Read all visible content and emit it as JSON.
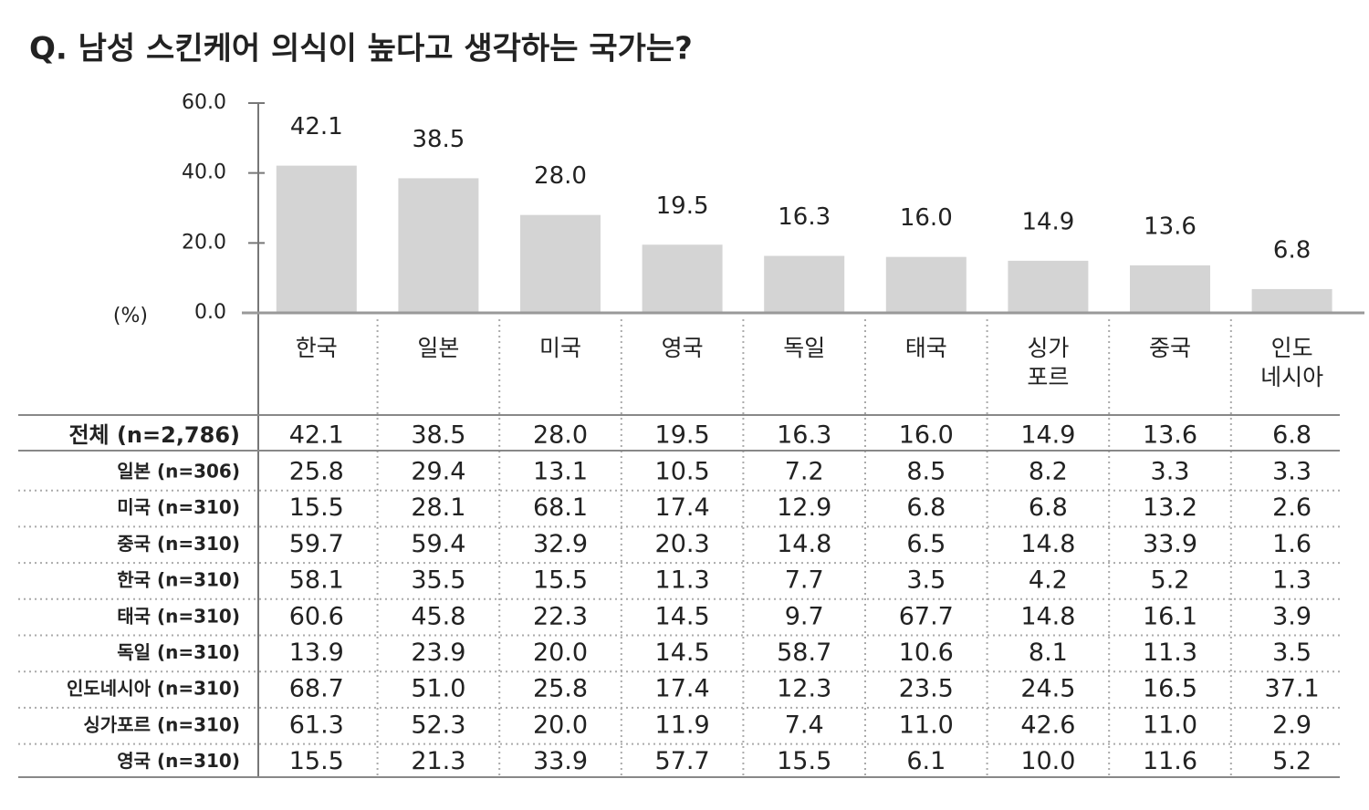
{
  "title": "Q. 남성 스킨케어 의식이  높다고 생각하는 국가는?",
  "chart_data": {
    "type": "bar",
    "y_unit": "(%)",
    "categories": [
      "한국",
      "일본",
      "미국",
      "영국",
      "독일",
      "태국",
      "싱가\n포르",
      "중국",
      "인도\n네시아"
    ],
    "values": [
      42.1,
      38.5,
      28.0,
      19.5,
      16.3,
      16.0,
      14.9,
      13.6,
      6.8
    ],
    "value_labels": [
      "42.1",
      "38.5",
      "28.0",
      "19.5",
      "16.3",
      "16.0",
      "14.9",
      "13.6",
      "6.8"
    ],
    "color": "#d4d4d4",
    "ylim": [
      0,
      60
    ],
    "yticks": [
      {
        "value": 0,
        "label": "0.0"
      },
      {
        "value": 20,
        "label": "20.0"
      },
      {
        "value": 40,
        "label": "40.0"
      },
      {
        "value": 60,
        "label": "60.0"
      }
    ]
  },
  "table": {
    "rows": [
      {
        "label": "전체 (n=2,786)",
        "values": [
          "42.1",
          "38.5",
          "28.0",
          "19.5",
          "16.3",
          "16.0",
          "14.9",
          "13.6",
          "6.8"
        ]
      },
      {
        "label": "일본 (n=306)",
        "values": [
          "25.8",
          "29.4",
          "13.1",
          "10.5",
          "7.2",
          "8.5",
          "8.2",
          "3.3",
          "3.3"
        ]
      },
      {
        "label": "미국 (n=310)",
        "values": [
          "15.5",
          "28.1",
          "68.1",
          "17.4",
          "12.9",
          "6.8",
          "6.8",
          "13.2",
          "2.6"
        ]
      },
      {
        "label": "중국 (n=310)",
        "values": [
          "59.7",
          "59.4",
          "32.9",
          "20.3",
          "14.8",
          "6.5",
          "14.8",
          "33.9",
          "1.6"
        ]
      },
      {
        "label": "한국 (n=310)",
        "values": [
          "58.1",
          "35.5",
          "15.5",
          "11.3",
          "7.7",
          "3.5",
          "4.2",
          "5.2",
          "1.3"
        ]
      },
      {
        "label": "태국 (n=310)",
        "values": [
          "60.6",
          "45.8",
          "22.3",
          "14.5",
          "9.7",
          "67.7",
          "14.8",
          "16.1",
          "3.9"
        ]
      },
      {
        "label": "독일 (n=310)",
        "values": [
          "13.9",
          "23.9",
          "20.0",
          "14.5",
          "58.7",
          "10.6",
          "8.1",
          "11.3",
          "3.5"
        ]
      },
      {
        "label": "인도네시아 (n=310)",
        "values": [
          "68.7",
          "51.0",
          "25.8",
          "17.4",
          "12.3",
          "23.5",
          "24.5",
          "16.5",
          "37.1"
        ]
      },
      {
        "label": "싱가포르 (n=310)",
        "values": [
          "61.3",
          "52.3",
          "20.0",
          "11.9",
          "7.4",
          "11.0",
          "42.6",
          "11.0",
          "2.9"
        ]
      },
      {
        "label": "영국 (n=310)",
        "values": [
          "15.5",
          "21.3",
          "33.9",
          "57.7",
          "15.5",
          "6.1",
          "10.0",
          "11.6",
          "5.2"
        ]
      }
    ]
  }
}
